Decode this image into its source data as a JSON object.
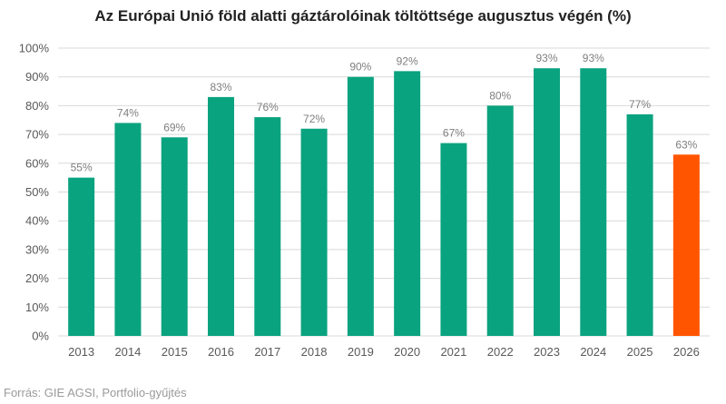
{
  "chart_data": {
    "type": "bar",
    "title": "Az Európai Unió föld alatti gáztárolóinak töltöttsége augusztus végén (%)",
    "categories": [
      "2013",
      "2014",
      "2015",
      "2016",
      "2017",
      "2018",
      "2019",
      "2020",
      "2021",
      "2022",
      "2023",
      "2024",
      "2025",
      "2026"
    ],
    "values": [
      55,
      74,
      69,
      83,
      76,
      72,
      90,
      92,
      67,
      80,
      93,
      93,
      77,
      63
    ],
    "value_labels": [
      "55%",
      "74%",
      "69%",
      "83%",
      "76%",
      "72%",
      "90%",
      "92%",
      "67%",
      "80%",
      "93%",
      "93%",
      "77%",
      "63%"
    ],
    "y_ticks": [
      0,
      10,
      20,
      30,
      40,
      50,
      60,
      70,
      80,
      90,
      100
    ],
    "y_tick_labels": [
      "0%",
      "10%",
      "20%",
      "30%",
      "40%",
      "50%",
      "60%",
      "70%",
      "80%",
      "90%",
      "100%"
    ],
    "ylim": [
      0,
      100
    ],
    "xlabel": "",
    "ylabel": "",
    "grid": true,
    "legend": "none",
    "colors": {
      "bar": "#0aa37f",
      "highlight": "#ff5500",
      "grid": "#d9d9d9",
      "axis_text": "#595959",
      "label_text": "#7f7f7f"
    },
    "highlight_index": 13
  },
  "source": "Forrás: GIE AGSI, Portfolio-gyűjtés"
}
